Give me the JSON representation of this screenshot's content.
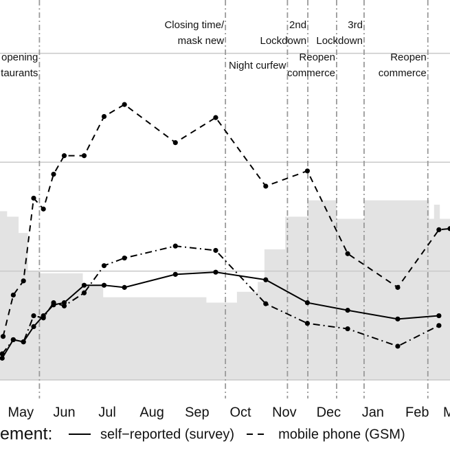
{
  "chart_data": {
    "type": "line",
    "xlim": [
      -0.47,
      9.69
    ],
    "ylim": [
      -0.17,
      3.49
    ],
    "yticks": [
      0,
      1,
      2,
      3
    ],
    "grid": true,
    "xticks": [
      {
        "value": 0,
        "label": "May"
      },
      {
        "value": 0.98,
        "label": "Jun"
      },
      {
        "value": 1.95,
        "label": "Jul"
      },
      {
        "value": 2.96,
        "label": "Aug"
      },
      {
        "value": 3.98,
        "label": "Sep"
      },
      {
        "value": 4.96,
        "label": "Oct"
      },
      {
        "value": 5.95,
        "label": "Nov"
      },
      {
        "value": 6.95,
        "label": "Dec"
      },
      {
        "value": 7.95,
        "label": "Jan"
      },
      {
        "value": 8.95,
        "label": "Feb"
      },
      {
        "value": 9.69,
        "label": "M"
      }
    ],
    "background_area": {
      "color": "#e3e3e3",
      "x": [
        -0.47,
        -0.31,
        -0.05,
        0.16,
        0.42,
        1.4,
        1.86,
        4.19,
        4.88,
        5.35,
        5.5,
        5.97,
        6.47,
        7.13,
        7.75,
        9.22,
        9.33,
        9.46,
        9.69
      ],
      "values": [
        1.55,
        1.5,
        1.35,
        1.0,
        0.98,
        0.87,
        0.76,
        0.71,
        0.81,
        0.9,
        1.2,
        1.5,
        1.65,
        1.48,
        1.65,
        1.48,
        1.61,
        1.48,
        1.48
      ]
    },
    "events": [
      {
        "x": 0.42,
        "label": [
          "opening",
          "taurants"
        ]
      },
      {
        "x": 4.62,
        "label": [
          "Closing time/",
          "mask new"
        ]
      },
      {
        "x": 6.02,
        "label": [
          "Night curfew"
        ]
      },
      {
        "x": 6.48,
        "label": [
          "2nd",
          "Lockdown"
        ]
      },
      {
        "x": 7.13,
        "label": [
          "Reopen",
          "commerce"
        ]
      },
      {
        "x": 7.75,
        "label": [
          "3rd",
          "Lockdown"
        ]
      },
      {
        "x": 9.19,
        "label": [
          "Reopen",
          "commerce"
        ]
      }
    ],
    "legend_title": "ement:",
    "series": [
      {
        "name": "self−reported (survey)",
        "color": "#000000",
        "line_style": "solid",
        "x": [
          -0.42,
          -0.17,
          0.06,
          0.29,
          0.51,
          0.74,
          0.98,
          1.43,
          1.88,
          2.34,
          3.49,
          4.4,
          5.53,
          6.47,
          7.38,
          8.51,
          9.44
        ],
        "values": [
          0.2,
          0.37,
          0.35,
          0.49,
          0.59,
          0.69,
          0.71,
          0.87,
          0.87,
          0.85,
          0.97,
          0.99,
          0.92,
          0.71,
          0.64,
          0.56,
          0.59
        ]
      },
      {
        "name": "mobile phone (GSM)",
        "color": "#000000",
        "line_style": "dashed",
        "x": [
          -0.4,
          -0.17,
          0.06,
          0.29,
          0.51,
          0.74,
          0.98,
          1.43,
          1.88,
          2.34,
          3.49,
          4.4,
          5.53,
          6.47,
          7.38,
          8.51,
          9.44,
          9.69
        ],
        "values": [
          0.4,
          0.78,
          0.91,
          1.67,
          1.57,
          1.89,
          2.06,
          2.06,
          2.42,
          2.53,
          2.18,
          2.41,
          1.78,
          1.92,
          1.16,
          0.85,
          1.38,
          1.39
        ]
      },
      {
        "color": "#000000",
        "line_style": "dashdot",
        "x": [
          -0.42,
          -0.17,
          0.06,
          0.29,
          0.51,
          0.74,
          0.98,
          1.43,
          1.88,
          2.34,
          3.49,
          4.4,
          5.53,
          6.47,
          7.38,
          8.51,
          9.44
        ],
        "values": [
          0.24,
          0.37,
          0.35,
          0.59,
          0.57,
          0.71,
          0.68,
          0.8,
          1.05,
          1.12,
          1.23,
          1.19,
          0.7,
          0.52,
          0.47,
          0.31,
          0.5
        ]
      }
    ]
  }
}
